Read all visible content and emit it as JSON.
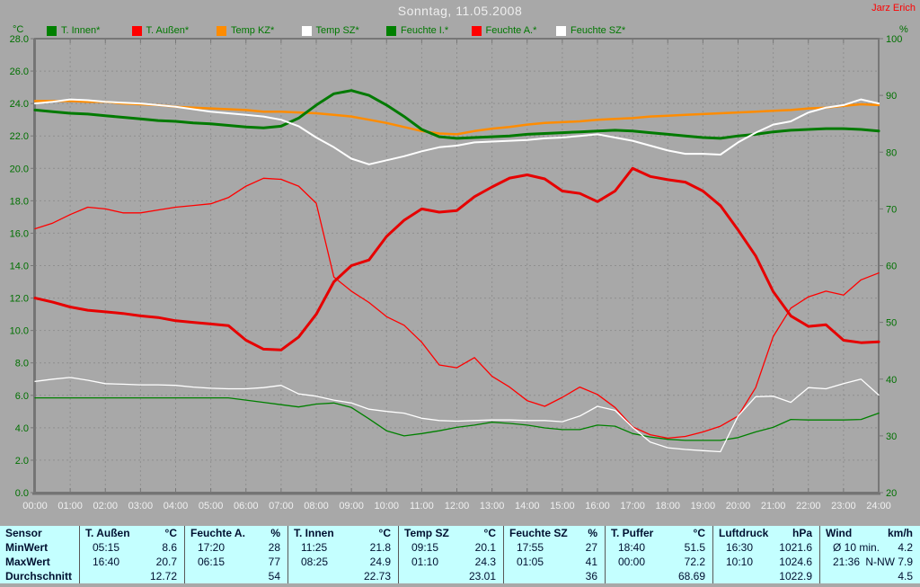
{
  "header": {
    "title": "Sonntag, 11.05.2008",
    "author": "Jarz Erich",
    "left_axis_unit": "°C",
    "right_axis_unit": "%"
  },
  "legend": [
    {
      "id": "t-innen",
      "label": "T. Innen*",
      "color": "#008000"
    },
    {
      "id": "t-aussen",
      "label": "T. Außen*",
      "color": "#ff0000"
    },
    {
      "id": "temp-kz",
      "label": "Temp KZ*",
      "color": "#ff8c00"
    },
    {
      "id": "temp-sz",
      "label": "Temp SZ*",
      "color": "#ffffff"
    },
    {
      "id": "feuchte-i",
      "label": "Feuchte I.*",
      "color": "#008000"
    },
    {
      "id": "feuchte-a",
      "label": "Feuchte A.*",
      "color": "#ff0000"
    },
    {
      "id": "feuchte-sz",
      "label": "Feuchte SZ*",
      "color": "#ffffff"
    }
  ],
  "chart_data": {
    "type": "line",
    "title": "Sonntag, 11.05.2008",
    "grid": true,
    "axes": {
      "left": {
        "unit": "°C",
        "min": 0,
        "max": 28,
        "step": 2,
        "ticks": [
          "28.0",
          "26.0",
          "24.0",
          "22.0",
          "20.0",
          "18.0",
          "16.0",
          "14.0",
          "12.0",
          "10.0",
          "8.0",
          "6.0",
          "4.0",
          "2.0",
          "0.0"
        ]
      },
      "right": {
        "unit": "%",
        "min": 20,
        "max": 100,
        "step": 10,
        "ticks": [
          "100",
          "90",
          "80",
          "70",
          "60",
          "50",
          "40",
          "30",
          "20"
        ]
      },
      "x": {
        "unit": "hours",
        "ticks": [
          "00:00",
          "01:00",
          "02:00",
          "03:00",
          "04:00",
          "05:00",
          "06:00",
          "07:00",
          "08:00",
          "09:00",
          "10:00",
          "11:00",
          "12:00",
          "13:00",
          "14:00",
          "15:00",
          "16:00",
          "17:00",
          "18:00",
          "19:00",
          "20:00",
          "21:00",
          "22:00",
          "23:00",
          "24:00"
        ]
      }
    },
    "x": [
      0,
      0.5,
      1,
      1.5,
      2,
      2.5,
      3,
      3.5,
      4,
      4.5,
      5,
      5.5,
      6,
      6.5,
      7,
      7.5,
      8,
      8.5,
      9,
      9.5,
      10,
      10.5,
      11,
      11.5,
      12,
      12.5,
      13,
      13.5,
      14,
      14.5,
      15,
      15.5,
      16,
      16.5,
      17,
      17.5,
      18,
      18.5,
      19,
      19.5,
      20,
      20.5,
      21,
      21.5,
      22,
      22.5,
      23,
      23.5,
      24
    ],
    "series": [
      {
        "id": "feuchte-i",
        "name": "Feuchte I.",
        "axis": "right",
        "color": "#008000",
        "width": 1.3,
        "y": [
          36.7,
          36.7,
          36.7,
          36.7,
          36.7,
          36.7,
          36.7,
          36.7,
          36.7,
          36.7,
          36.7,
          36.7,
          36.3,
          35.9,
          35.5,
          35.1,
          35.6,
          35.8,
          35.0,
          33.0,
          30.9,
          30.0,
          30.4,
          30.9,
          31.5,
          31.9,
          32.4,
          32.2,
          31.9,
          31.4,
          31.1,
          31.1,
          31.9,
          31.7,
          30.4,
          29.8,
          29.4,
          29.2,
          29.2,
          29.2,
          29.7,
          30.7,
          31.5,
          32.9,
          32.8,
          32.8,
          32.8,
          32.9,
          34.0
        ]
      },
      {
        "id": "feuchte-a",
        "name": "Feuchte A.",
        "axis": "right",
        "color": "#ff0000",
        "width": 1.3,
        "y": [
          66.5,
          67.5,
          69.0,
          70.3,
          70.0,
          69.3,
          69.3,
          69.8,
          70.3,
          70.6,
          70.9,
          72.0,
          74.0,
          75.4,
          75.2,
          74.0,
          71.0,
          58.0,
          55.5,
          53.5,
          51.0,
          49.5,
          46.5,
          42.5,
          42.0,
          43.8,
          40.5,
          38.6,
          36.2,
          35.2,
          36.8,
          38.6,
          37.3,
          35.0,
          31.6,
          30.2,
          29.6,
          29.9,
          30.7,
          31.7,
          33.5,
          38.5,
          47.5,
          52.5,
          54.5,
          55.5,
          54.8,
          57.5,
          58.7
        ]
      },
      {
        "id": "temp-kz",
        "name": "Temp KZ",
        "axis": "left",
        "color": "#ff8c00",
        "width": 2.5,
        "y": [
          24.15,
          24.15,
          24.15,
          24.1,
          24.1,
          24.0,
          23.95,
          23.9,
          23.8,
          23.75,
          23.7,
          23.65,
          23.6,
          23.5,
          23.5,
          23.45,
          23.4,
          23.3,
          23.2,
          23.0,
          22.8,
          22.55,
          22.3,
          22.15,
          22.1,
          22.3,
          22.45,
          22.55,
          22.7,
          22.8,
          22.85,
          22.9,
          23.0,
          23.05,
          23.1,
          23.2,
          23.25,
          23.3,
          23.35,
          23.4,
          23.45,
          23.5,
          23.55,
          23.6,
          23.7,
          23.75,
          23.85,
          23.95,
          23.9
        ]
      },
      {
        "id": "t-innen",
        "name": "T. Innen",
        "axis": "left",
        "color": "#007a00",
        "width": 3,
        "y": [
          23.6,
          23.5,
          23.4,
          23.35,
          23.25,
          23.15,
          23.05,
          22.95,
          22.9,
          22.8,
          22.75,
          22.65,
          22.55,
          22.5,
          22.6,
          23.1,
          23.9,
          24.6,
          24.8,
          24.5,
          23.9,
          23.2,
          22.4,
          21.95,
          21.85,
          21.9,
          21.95,
          22.0,
          22.1,
          22.15,
          22.2,
          22.25,
          22.3,
          22.35,
          22.3,
          22.2,
          22.1,
          22.0,
          21.9,
          21.85,
          22.0,
          22.1,
          22.25,
          22.35,
          22.4,
          22.45,
          22.45,
          22.4,
          22.3
        ]
      },
      {
        "id": "t-aussen",
        "name": "T. Außen",
        "axis": "left",
        "color": "#e60000",
        "width": 3,
        "y": [
          12.0,
          11.75,
          11.45,
          11.25,
          11.15,
          11.05,
          10.9,
          10.8,
          10.6,
          10.5,
          10.4,
          10.3,
          9.4,
          8.85,
          8.8,
          9.6,
          11.0,
          13.0,
          14.0,
          14.35,
          15.8,
          16.8,
          17.5,
          17.3,
          17.4,
          18.25,
          18.85,
          19.4,
          19.6,
          19.35,
          18.6,
          18.45,
          17.95,
          18.6,
          20.0,
          19.5,
          19.3,
          19.15,
          18.6,
          17.7,
          16.2,
          14.6,
          12.4,
          10.9,
          10.25,
          10.35,
          9.4,
          9.25,
          9.3
        ]
      },
      {
        "id": "temp-sz",
        "name": "Temp SZ",
        "axis": "left",
        "color": "#ffffff",
        "width": 2,
        "y": [
          24.0,
          24.1,
          24.25,
          24.2,
          24.1,
          24.05,
          24.0,
          23.9,
          23.8,
          23.65,
          23.5,
          23.4,
          23.3,
          23.2,
          23.0,
          22.6,
          21.9,
          21.3,
          20.6,
          20.25,
          20.5,
          20.75,
          21.05,
          21.3,
          21.4,
          21.6,
          21.65,
          21.7,
          21.75,
          21.85,
          21.9,
          22.0,
          22.1,
          21.9,
          21.7,
          21.4,
          21.1,
          20.9,
          20.9,
          20.85,
          21.6,
          22.2,
          22.7,
          22.9,
          23.45,
          23.75,
          23.9,
          24.25,
          24.0
        ]
      },
      {
        "id": "feuchte-sz",
        "name": "Feuchte SZ",
        "axis": "right",
        "color": "#ffffff",
        "width": 1.3,
        "y": [
          39.6,
          40.0,
          40.3,
          39.8,
          39.2,
          39.1,
          39.0,
          39.0,
          38.9,
          38.6,
          38.4,
          38.3,
          38.3,
          38.5,
          38.9,
          37.4,
          37.0,
          36.3,
          35.8,
          34.7,
          34.3,
          34.0,
          33.1,
          32.7,
          32.6,
          32.7,
          32.8,
          32.8,
          32.7,
          32.7,
          32.5,
          33.5,
          35.2,
          34.5,
          31.5,
          28.9,
          27.9,
          27.6,
          27.4,
          27.2,
          33.5,
          36.9,
          37.0,
          35.9,
          38.5,
          38.3,
          39.2,
          40.0,
          37.2
        ]
      }
    ]
  },
  "table": {
    "corner_label": "Sensor",
    "row_labels": [
      "MinWert",
      "MaxWert",
      "Durchschnitt"
    ],
    "columns": [
      {
        "id": "t-aussen",
        "name": "T. Außen",
        "unit": "°C",
        "min_time": "05:15",
        "min_value": "8.6",
        "max_time": "16:40",
        "max_value": "20.7",
        "avg": "12.72"
      },
      {
        "id": "feuchte-a",
        "name": "Feuchte A.",
        "unit": "%",
        "min_time": "17:20",
        "min_value": "28",
        "max_time": "06:15",
        "max_value": "77",
        "avg": "54"
      },
      {
        "id": "t-innen",
        "name": "T. Innen",
        "unit": "°C",
        "min_time": "11:25",
        "min_value": "21.8",
        "max_time": "08:25",
        "max_value": "24.9",
        "avg": "22.73"
      },
      {
        "id": "temp-sz",
        "name": "Temp SZ",
        "unit": "°C",
        "min_time": "09:15",
        "min_value": "20.1",
        "max_time": "01:10",
        "max_value": "24.3",
        "avg": "23.01"
      },
      {
        "id": "feuchte-sz",
        "name": "Feuchte SZ",
        "unit": "%",
        "min_time": "17:55",
        "min_value": "27",
        "max_time": "01:05",
        "max_value": "41",
        "avg": "36"
      },
      {
        "id": "t-puffer",
        "name": "T. Puffer",
        "unit": "°C",
        "min_time": "18:40",
        "min_value": "51.5",
        "max_time": "00:00",
        "max_value": "72.2",
        "avg": "68.69"
      },
      {
        "id": "luftdruck",
        "name": "Luftdruck",
        "unit": "hPa",
        "min_time": "16:30",
        "min_value": "1021.6",
        "max_time": "10:10",
        "max_value": "1024.6",
        "avg": "1022.9"
      },
      {
        "id": "wind",
        "name": "Wind",
        "unit": "km/h",
        "min_time": "Ø 10 min.",
        "min_value": "4.2",
        "max_time": "21:36",
        "max_value": "N-NW 7.9",
        "avg": "4.5"
      }
    ]
  }
}
